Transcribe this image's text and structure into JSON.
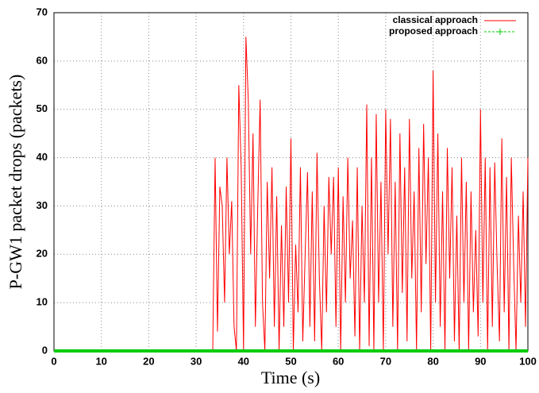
{
  "chart_data": {
    "type": "line",
    "xlabel": "Time (s)",
    "ylabel": "P-GW1 packet drops (packets)",
    "xlim": [
      0,
      100
    ],
    "ylim": [
      0,
      70
    ],
    "xticks": [
      0,
      10,
      20,
      30,
      40,
      50,
      60,
      70,
      80,
      90,
      100
    ],
    "yticks": [
      0,
      10,
      20,
      30,
      40,
      50,
      60,
      70
    ],
    "grid": true,
    "legend": "top-right",
    "series": [
      {
        "name": "classical approach",
        "color": "#ff0000",
        "x": [
          0,
          33,
          33.5,
          34,
          34.5,
          35,
          35.5,
          36,
          36.5,
          37,
          37.5,
          38,
          38.5,
          39,
          39.5,
          40,
          40.5,
          41,
          41.5,
          42,
          42.5,
          43,
          43.5,
          44,
          44.5,
          45,
          45.5,
          46,
          46.5,
          47,
          47.5,
          48,
          48.5,
          49,
          49.5,
          50,
          50.5,
          51,
          51.5,
          52,
          52.5,
          53,
          53.5,
          54,
          54.5,
          55,
          55.5,
          56,
          56.5,
          57,
          57.5,
          58,
          58.5,
          59,
          59.5,
          60,
          60.5,
          61,
          61.5,
          62,
          62.5,
          63,
          63.5,
          64,
          64.5,
          65,
          65.5,
          66,
          66.5,
          67,
          67.5,
          68,
          68.5,
          69,
          69.5,
          70,
          70.5,
          71,
          71.5,
          72,
          72.5,
          73,
          73.5,
          74,
          74.5,
          75,
          75.5,
          76,
          76.5,
          77,
          77.5,
          78,
          78.5,
          79,
          79.5,
          80,
          80.5,
          81,
          81.5,
          82,
          82.5,
          83,
          83.5,
          84,
          84.5,
          85,
          85.5,
          86,
          86.5,
          87,
          87.5,
          88,
          88.5,
          89,
          89.5,
          90,
          90.5,
          91,
          91.5,
          92,
          92.5,
          93,
          93.5,
          94,
          94.5,
          95,
          95.5,
          96,
          96.5,
          97,
          97.5,
          98,
          98.5,
          99,
          99.5,
          100
        ],
        "values": [
          0,
          0,
          0,
          40,
          4,
          34,
          30,
          10,
          40,
          20,
          31,
          5,
          0,
          55,
          38,
          0,
          65,
          52,
          20,
          45,
          5,
          30,
          52,
          10,
          0,
          35,
          15,
          38,
          5,
          32,
          0,
          26,
          5,
          34,
          10,
          44,
          0,
          22,
          8,
          38,
          2,
          20,
          37,
          5,
          33,
          2,
          41,
          15,
          0,
          30,
          8,
          36,
          20,
          36,
          5,
          38,
          0,
          32,
          10,
          40,
          15,
          27,
          3,
          38,
          0,
          30,
          10,
          51,
          1,
          40,
          0,
          49,
          10,
          35,
          0,
          50,
          20,
          48,
          5,
          35,
          0,
          45,
          12,
          38,
          2,
          48,
          15,
          33,
          0,
          42,
          8,
          47,
          18,
          40,
          0,
          58,
          10,
          45,
          5,
          33,
          0,
          42,
          15,
          38,
          2,
          28,
          0,
          40,
          10,
          35,
          0,
          33,
          8,
          25,
          3,
          50,
          10,
          40,
          0,
          38,
          5,
          39,
          18,
          2,
          44,
          8,
          36,
          0,
          40,
          18,
          0,
          28,
          10,
          33,
          5,
          40
        ]
      },
      {
        "name": "proposed approach",
        "color": "#00cc00",
        "x": [
          0,
          100
        ],
        "values": [
          0,
          0
        ]
      }
    ]
  }
}
